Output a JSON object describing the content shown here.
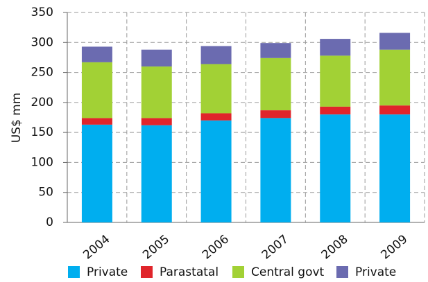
{
  "chart_data": {
    "type": "stacked_bar",
    "y_label": "US$ mm",
    "categories": [
      "2004",
      "2005",
      "2006",
      "2007",
      "2008",
      "2009"
    ],
    "series": [
      {
        "name": "Private",
        "color": "#00aeef",
        "values": [
          163,
          162,
          170,
          174,
          180,
          180
        ]
      },
      {
        "name": "Parastatal",
        "color": "#e0252b",
        "values": [
          11,
          12,
          12,
          13,
          13,
          15
        ]
      },
      {
        "name": "Central govt",
        "color": "#a2d135",
        "values": [
          93,
          86,
          82,
          87,
          85,
          93
        ]
      },
      {
        "name": "Private",
        "color": "#6b6bb0",
        "values": [
          26,
          28,
          30,
          25,
          28,
          28
        ]
      }
    ],
    "ylim": [
      0,
      350
    ],
    "yticks": [
      0,
      50,
      100,
      150,
      200,
      250,
      300,
      350
    ],
    "grid": true
  }
}
